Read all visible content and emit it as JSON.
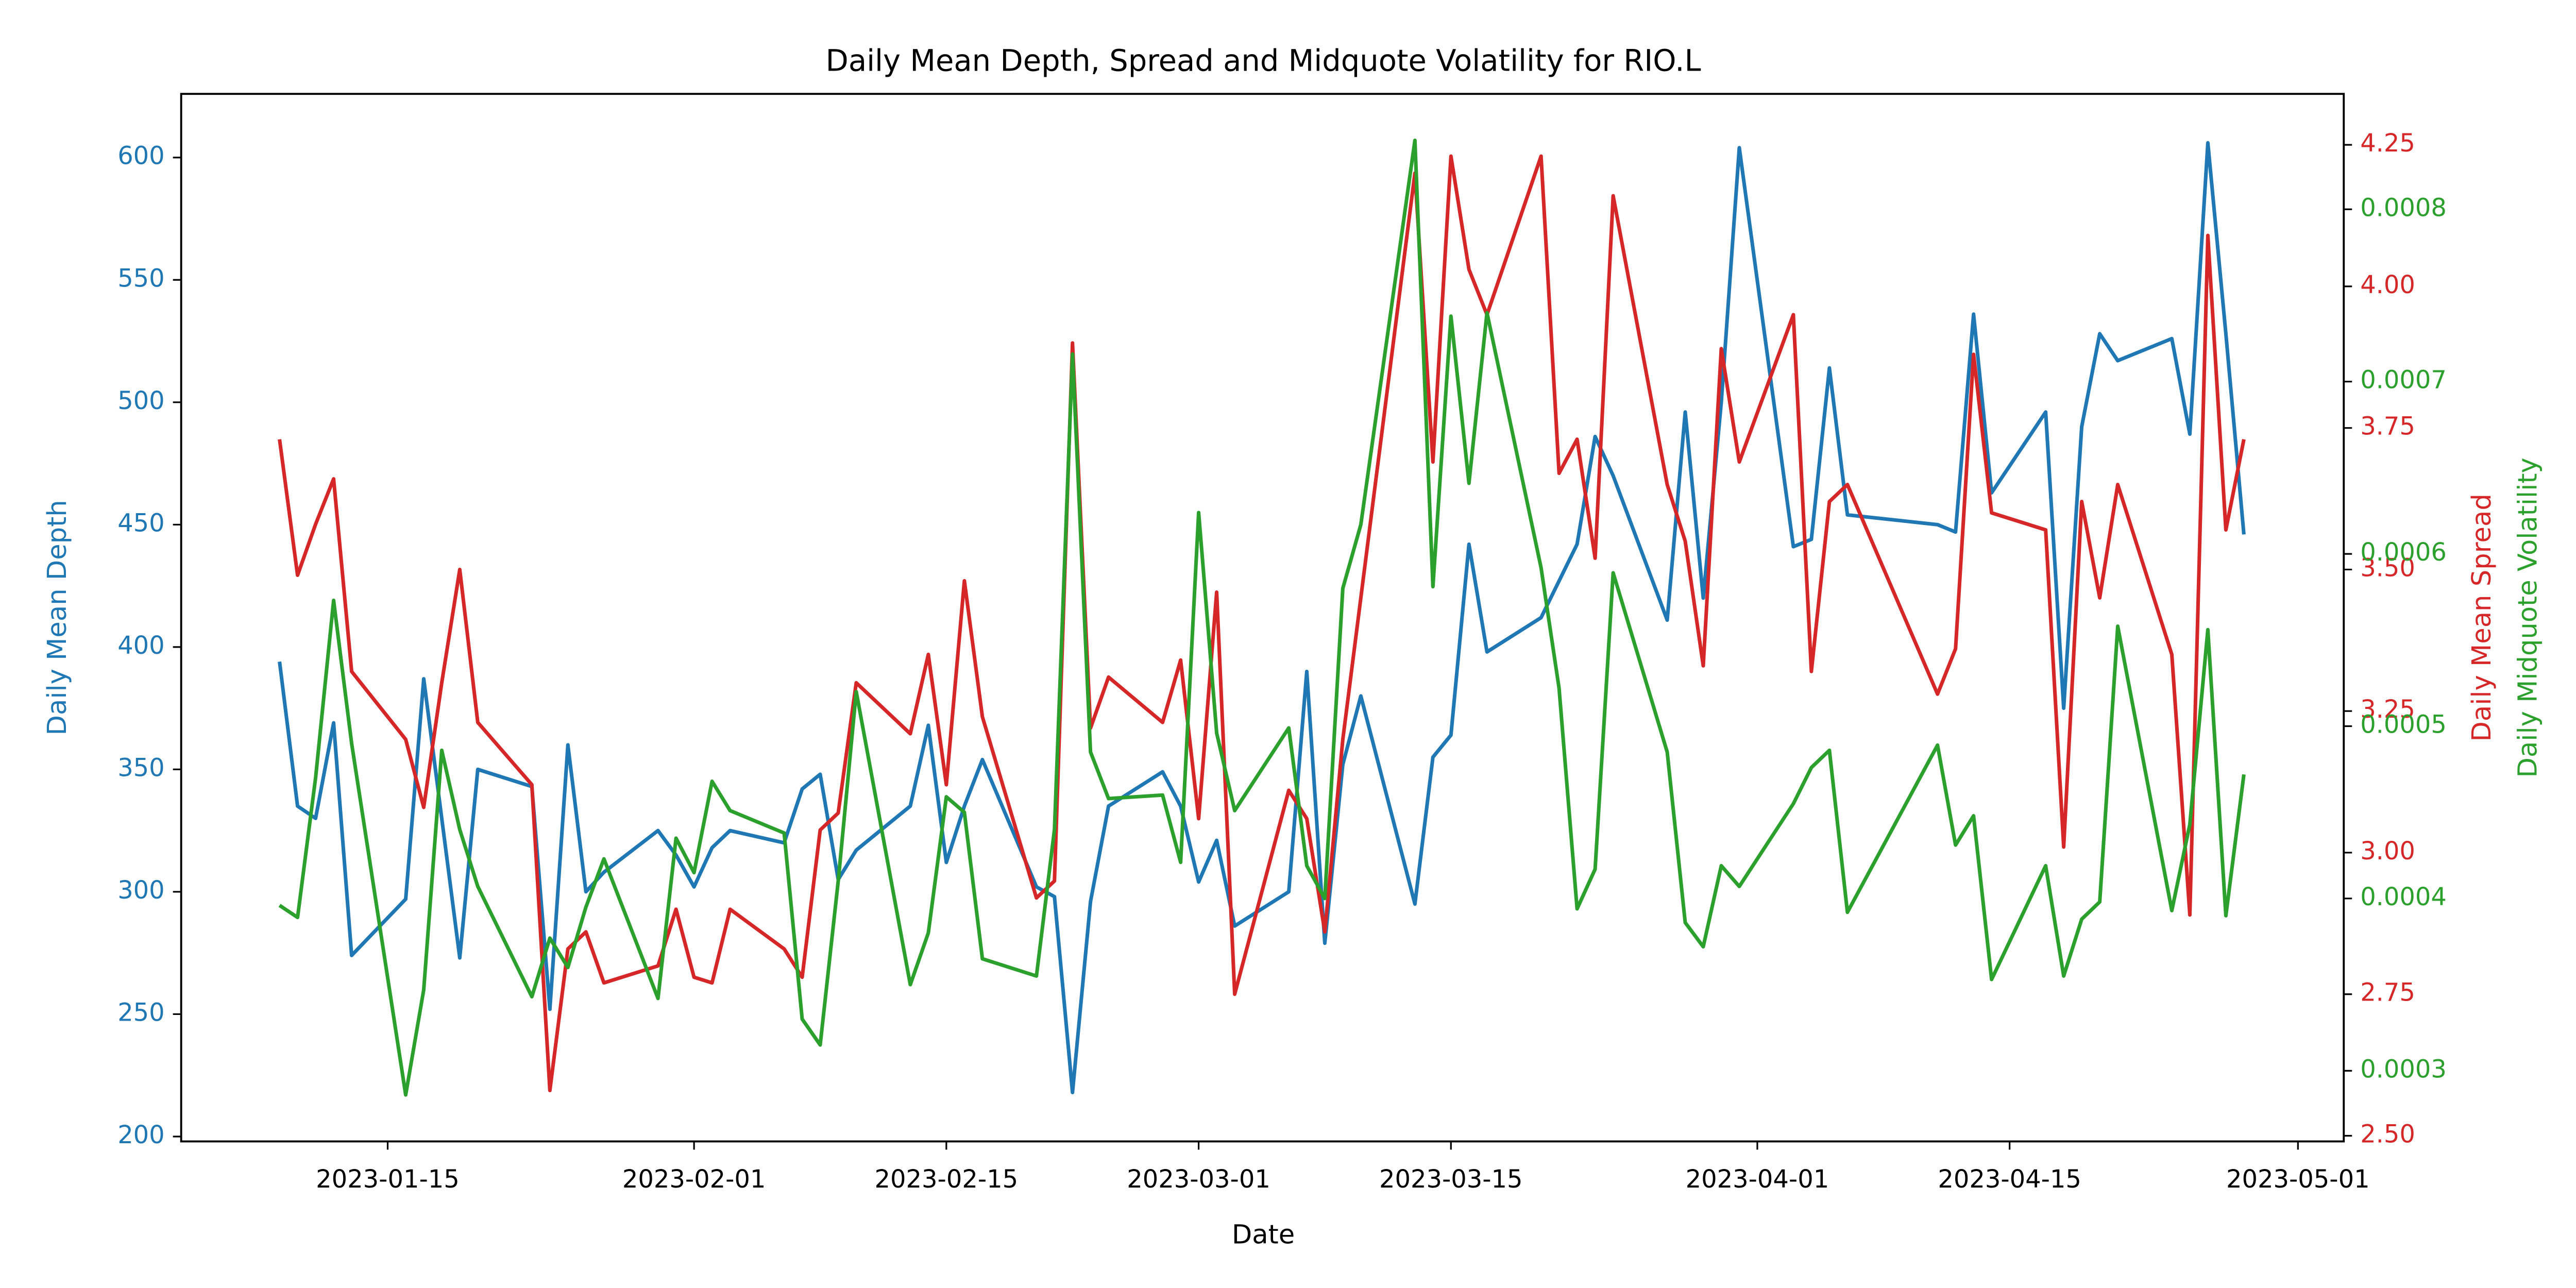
{
  "chart_data": {
    "type": "line",
    "title": "Daily Mean Depth, Spread and Midquote Volatility for RIO.L",
    "xlabel": "Date",
    "ylabel": "Daily Mean Depth",
    "y2label": "Daily Mean Spread",
    "y3label": "Daily Midquote Volatility",
    "x": [
      "2023-01-09",
      "2023-01-10",
      "2023-01-11",
      "2023-01-12",
      "2023-01-13",
      "2023-01-16",
      "2023-01-17",
      "2023-01-18",
      "2023-01-19",
      "2023-01-20",
      "2023-01-23",
      "2023-01-24",
      "2023-01-25",
      "2023-01-26",
      "2023-01-27",
      "2023-01-30",
      "2023-01-31",
      "2023-02-01",
      "2023-02-02",
      "2023-02-03",
      "2023-02-06",
      "2023-02-07",
      "2023-02-08",
      "2023-02-09",
      "2023-02-10",
      "2023-02-13",
      "2023-02-14",
      "2023-02-15",
      "2023-02-16",
      "2023-02-17",
      "2023-02-20",
      "2023-02-21",
      "2023-02-22",
      "2023-02-23",
      "2023-02-24",
      "2023-02-27",
      "2023-02-28",
      "2023-03-01",
      "2023-03-02",
      "2023-03-03",
      "2023-03-06",
      "2023-03-07",
      "2023-03-08",
      "2023-03-09",
      "2023-03-10",
      "2023-03-13",
      "2023-03-14",
      "2023-03-15",
      "2023-03-16",
      "2023-03-17",
      "2023-03-20",
      "2023-03-21",
      "2023-03-22",
      "2023-03-23",
      "2023-03-24",
      "2023-03-27",
      "2023-03-28",
      "2023-03-29",
      "2023-03-30",
      "2023-03-31",
      "2023-04-03",
      "2023-04-04",
      "2023-04-05",
      "2023-04-06",
      "2023-04-11",
      "2023-04-12",
      "2023-04-13",
      "2023-04-14",
      "2023-04-17",
      "2023-04-18",
      "2023-04-19",
      "2023-04-20",
      "2023-04-21",
      "2023-04-24",
      "2023-04-25",
      "2023-04-26",
      "2023-04-27",
      "2023-04-28"
    ],
    "series": [
      {
        "name": "Daily Mean Depth",
        "color": "#1f77b4",
        "axis": "y",
        "values": [
          394,
          335,
          330,
          369,
          274,
          297,
          387,
          330,
          273,
          350,
          343,
          252,
          360,
          300,
          308,
          325,
          315,
          302,
          318,
          325,
          320,
          342,
          348,
          305,
          317,
          335,
          368,
          312,
          335,
          354,
          302,
          298,
          218,
          296,
          335,
          349,
          335,
          304,
          321,
          286,
          300,
          390,
          279,
          352,
          380,
          295,
          355,
          364,
          442,
          398,
          412,
          427,
          442,
          486,
          470,
          411,
          496,
          420,
          500,
          604,
          441,
          444,
          514,
          454,
          450,
          447,
          536,
          463,
          496,
          375,
          490,
          528,
          517,
          526,
          487,
          606,
          528,
          446
        ]
      },
      {
        "name": "Daily Mean Spread",
        "color": "#d62728",
        "axis": "y2",
        "values": [
          3.73,
          3.49,
          3.58,
          3.66,
          3.32,
          3.2,
          3.08,
          3.3,
          3.5,
          3.23,
          3.12,
          2.58,
          2.83,
          2.86,
          2.77,
          2.8,
          2.9,
          2.78,
          2.77,
          2.9,
          2.83,
          2.78,
          3.04,
          3.07,
          3.3,
          3.21,
          3.35,
          3.12,
          3.48,
          3.24,
          2.92,
          2.95,
          3.9,
          3.22,
          3.31,
          3.23,
          3.34,
          3.06,
          3.46,
          2.75,
          3.11,
          3.06,
          2.86,
          3.2,
          3.45,
          4.2,
          3.69,
          4.23,
          4.03,
          3.95,
          4.23,
          3.67,
          3.73,
          3.52,
          4.16,
          3.65,
          3.55,
          3.33,
          3.89,
          3.69,
          3.95,
          3.32,
          3.62,
          3.65,
          3.28,
          3.36,
          3.88,
          3.6,
          3.57,
          3.01,
          3.62,
          3.45,
          3.65,
          3.35,
          2.89,
          4.09,
          3.57,
          3.73
        ]
      },
      {
        "name": "Daily Midquote Volatility",
        "color": "#2ca02c",
        "axis": "y3",
        "values": [
          0.000396,
          0.000389,
          0.00047,
          0.000573,
          0.00049,
          0.000286,
          0.000347,
          0.000486,
          0.00044,
          0.000407,
          0.000343,
          0.000377,
          0.00036,
          0.000395,
          0.000423,
          0.000342,
          0.000435,
          0.000415,
          0.000468,
          0.000451,
          0.000438,
          0.00033,
          0.000315,
          0.00041,
          0.00052,
          0.00035,
          0.00038,
          0.000459,
          0.00045,
          0.000365,
          0.000355,
          0.00044,
          0.000716,
          0.000485,
          0.000458,
          0.00046,
          0.000421,
          0.000624,
          0.000496,
          0.000451,
          0.000499,
          0.000419,
          0.0004,
          0.00058,
          0.000617,
          0.00084,
          0.000581,
          0.000738,
          0.000641,
          0.00074,
          0.000592,
          0.000522,
          0.000394,
          0.000417,
          0.000589,
          0.000485,
          0.000386,
          0.000372,
          0.000419,
          0.000407,
          0.000455,
          0.000476,
          0.000486,
          0.000392,
          0.000489,
          0.000431,
          0.000448,
          0.000353,
          0.000419,
          0.000355,
          0.000388,
          0.000398,
          0.000558,
          0.000393,
          0.000443,
          0.000556,
          0.00039,
          0.000472
        ]
      }
    ],
    "xlim": [
      "2023-01-03T13:00",
      "2023-05-03T13:00"
    ],
    "xticks": [
      "2023-01-15",
      "2023-02-01",
      "2023-02-15",
      "2023-03-01",
      "2023-03-15",
      "2023-04-01",
      "2023-04-15",
      "2023-05-01"
    ],
    "ylim": [
      198,
      626
    ],
    "yticks": [
      200,
      250,
      300,
      350,
      400,
      450,
      500,
      550,
      600
    ],
    "y2lim": [
      2.49,
      4.34
    ],
    "y2ticks": [
      {
        "value": 2.5,
        "label": "2.50"
      },
      2.75,
      {
        "value": 3,
        "label": "3.00"
      },
      3.25,
      {
        "value": 3.5,
        "label": "3.50"
      },
      3.75,
      {
        "value": 4,
        "label": "4.00"
      },
      4.25
    ],
    "y3lim": [
      0.000259,
      0.000867
    ],
    "y3ticks": [
      0.0003,
      0.0004,
      0.0005,
      0.0006,
      0.0007,
      0.0008
    ]
  }
}
